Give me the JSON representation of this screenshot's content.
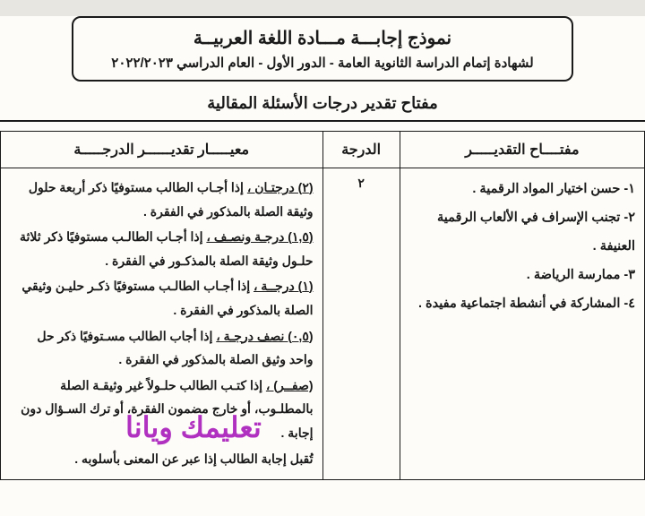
{
  "header": {
    "title": "نموذج إجابـــة مـــادة اللغة العربيــة",
    "subtitle": "لشهادة إتمام الدراسة الثانوية العامة - الدور الأول - العام الدراسي ٢٠٢٢/٢٠٢٣"
  },
  "section_title": "مفتاح تقدير درجات الأسئلة المقالية",
  "table": {
    "headers": {
      "key": "مفتــــاح التقديـــــر",
      "grade": "الدرجة",
      "criteria": "معيـــــار تقديــــــر الدرجـــــة"
    },
    "row": {
      "keys": [
        "١- حسن اختيار المواد الرقمية .",
        "٢- تجنب الإسراف في الألعاب الرقمية العنيفة .",
        "٣- ممارسة الرياضة .",
        "٤- المشاركة في أنشطة اجتماعية مفيدة ."
      ],
      "grade": "٢",
      "criteria": [
        {
          "lead": "(٢) درجتـان ،",
          "rest": " إذا أجـاب الطالب مستوفيًا ذكر أربعة حلول وثيقة الصلة بالمذكور في الفقرة ."
        },
        {
          "lead": "(١,٥) درجـة ونصـف ،",
          "rest": " إذا أجـاب الطالـب مستوفيًا ذكر ثلاثة حلـول وثيقة الصلة بالمذكـور في الفقرة ."
        },
        {
          "lead": "(١) درجــة ،",
          "rest": " إذا أجـاب الطالـب مستوفيًا ذكـر حليـن وثيقي الصلة بالمذكور في الفقرة ."
        },
        {
          "lead": "(٠,٥) نصف درجـة ،",
          "rest": " إذا أجاب الطالب مسـتوفيًا ذكر حل واحد وثيق الصلة بالمذكور في الفقرة ."
        },
        {
          "lead": "(صفــر) ،",
          "rest": " إذا كتـب الطالب حلـولاً غير وثيقـة الصلة بالمطلـوب، أو خارج مضمون الفقرة، أو ترك السـؤال دون إجابة ."
        },
        {
          "lead": "",
          "rest": "تُقبل إجابة الطالب إذا عبر عن المعنى بأسلوبه ."
        }
      ]
    }
  },
  "watermark": "تعليمك ويانا",
  "colors": {
    "text": "#1a1a1a",
    "border": "#1a1a1a",
    "bg": "#fdfcf8",
    "watermark": "#b030c0"
  }
}
